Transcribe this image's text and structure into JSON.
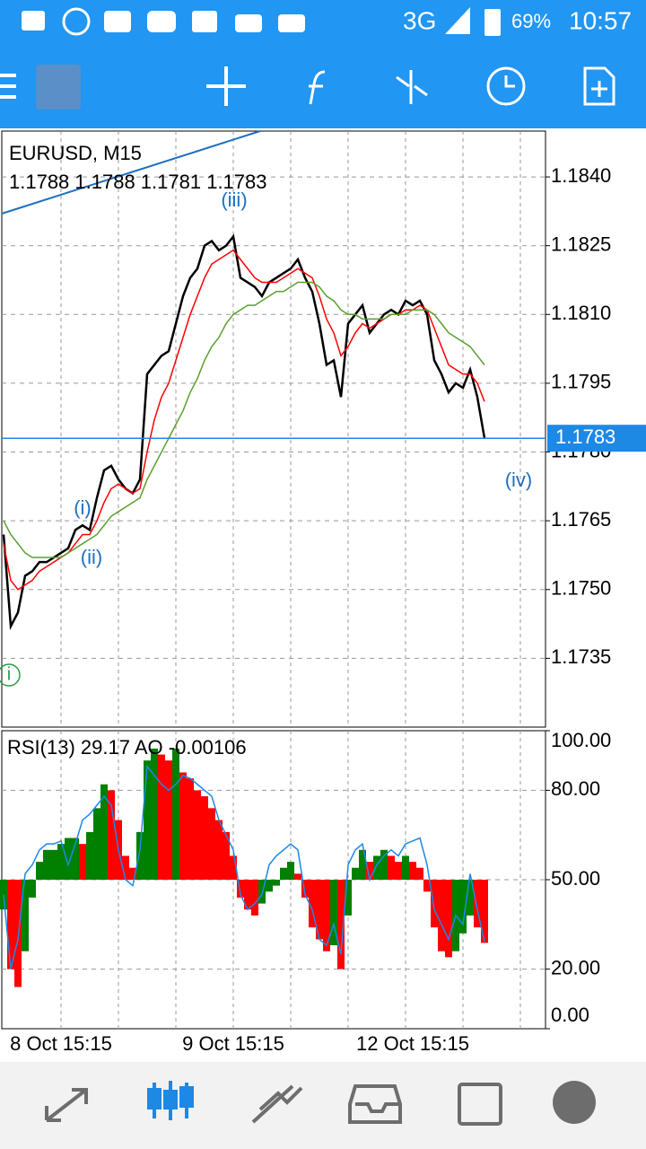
{
  "status_bar": {
    "network": "3G",
    "battery": "69%",
    "time": "10:57"
  },
  "chart_data": [
    {
      "type": "line",
      "title": "EURUSD, M15",
      "subtitle": "1.1788 1.1788 1.1781 1.1783",
      "annotations": [
        "(i)",
        "(ii)",
        "(iii)",
        "(iv)",
        "i"
      ],
      "current_price": 1.1783,
      "current_price_color": "#1e88e5",
      "categories": [
        null,
        null,
        null,
        null,
        null,
        null,
        null,
        null,
        "8 Oct 15:15",
        null,
        null,
        null,
        null,
        null,
        null,
        null,
        null,
        null,
        null,
        null,
        null,
        null,
        null,
        null,
        null,
        null,
        null,
        null,
        null,
        null,
        null,
        null,
        "9 Oct 15:15",
        null,
        null,
        null,
        null,
        null,
        null,
        null,
        null,
        null,
        null,
        null,
        null,
        null,
        null,
        null,
        null,
        null,
        null,
        null,
        null,
        null,
        null,
        null,
        null,
        "12 Oct 15:15",
        null,
        null,
        null,
        null,
        null,
        null,
        null,
        null,
        null,
        null
      ],
      "ylim": [
        1.172,
        1.185
      ],
      "yticks": [
        {
          "value": 1.184,
          "label": "1.1840"
        },
        1.1825,
        {
          "value": 1.181,
          "label": "1.1810"
        },
        1.1795,
        {
          "value": 1.178,
          "label": "1.1780"
        },
        1.1765,
        {
          "value": 1.175,
          "label": "1.1750"
        },
        1.1735
      ],
      "grid": true,
      "series": [
        {
          "color": "#000000",
          "values": [
            1.1762,
            1.1742,
            1.1745,
            1.1753,
            1.1754,
            1.1756,
            1.1756,
            1.1757,
            1.1758,
            1.1759,
            1.1763,
            1.1764,
            1.1763,
            1.177,
            1.1776,
            1.1777,
            1.1774,
            1.1772,
            1.1771,
            1.1774,
            1.1797,
            1.1799,
            1.1801,
            1.1802,
            1.1808,
            1.1814,
            1.1818,
            1.182,
            1.1825,
            1.1826,
            1.1824,
            1.1825,
            1.1827,
            1.1818,
            1.1817,
            1.1816,
            1.1814,
            1.1817,
            1.1818,
            1.1819,
            1.182,
            1.1822,
            1.1818,
            1.1815,
            1.1808,
            1.1799,
            1.18,
            1.1792,
            1.1808,
            1.181,
            1.1812,
            1.1806,
            1.1808,
            1.181,
            1.1811,
            1.181,
            1.1813,
            1.1812,
            1.1813,
            1.181,
            1.18,
            1.1797,
            1.1793,
            1.1795,
            1.1794,
            1.1798,
            1.1792,
            1.1783
          ]
        },
        {
          "color": "#ff0000",
          "values": [
            1.176,
            1.1752,
            1.175,
            1.1751,
            1.1752,
            1.1754,
            1.1755,
            1.1756,
            1.1757,
            1.1758,
            1.176,
            1.1762,
            1.1762,
            1.1765,
            1.1769,
            1.1772,
            1.1773,
            1.1772,
            1.1771,
            1.1772,
            1.178,
            1.1787,
            1.1792,
            1.1795,
            1.18,
            1.1805,
            1.181,
            1.1814,
            1.1818,
            1.1821,
            1.1822,
            1.1823,
            1.1824,
            1.1822,
            1.182,
            1.1818,
            1.1817,
            1.1817,
            1.1817,
            1.1818,
            1.1819,
            1.182,
            1.1819,
            1.1818,
            1.1814,
            1.1809,
            1.1806,
            1.1801,
            1.1803,
            1.1806,
            1.1808,
            1.1807,
            1.1808,
            1.1809,
            1.181,
            1.181,
            1.1811,
            1.1811,
            1.1812,
            1.1811,
            1.1807,
            1.1803,
            1.1799,
            1.1798,
            1.1797,
            1.1797,
            1.1795,
            1.1791
          ]
        },
        {
          "color": "#5aa02c",
          "values": [
            1.1765,
            1.1762,
            1.176,
            1.1758,
            1.1757,
            1.1757,
            1.1757,
            1.1757,
            1.1757,
            1.1758,
            1.1759,
            1.176,
            1.1761,
            1.1762,
            1.1764,
            1.1766,
            1.1767,
            1.1768,
            1.1769,
            1.177,
            1.1774,
            1.1777,
            1.178,
            1.1783,
            1.1786,
            1.1789,
            1.1793,
            1.1796,
            1.18,
            1.1803,
            1.1805,
            1.1808,
            1.181,
            1.1811,
            1.1812,
            1.1812,
            1.1813,
            1.1814,
            1.1815,
            1.1815,
            1.1816,
            1.1817,
            1.1817,
            1.1817,
            1.1816,
            1.1814,
            1.1813,
            1.1811,
            1.181,
            1.181,
            1.1809,
            1.1809,
            1.1809,
            1.1809,
            1.181,
            1.181,
            1.181,
            1.1811,
            1.1811,
            1.1811,
            1.181,
            1.1808,
            1.1806,
            1.1805,
            1.1804,
            1.1803,
            1.1801,
            1.1799
          ]
        }
      ]
    },
    {
      "type": "combo",
      "title": "RSI(13) 29.17 AO -0.00106",
      "ylim": [
        0,
        100
      ],
      "yticks": [
        {
          "value": 100,
          "label": "100.00"
        },
        {
          "value": 80,
          "label": "80.00"
        },
        {
          "value": 50,
          "label": "50.00"
        },
        {
          "value": 20,
          "label": "20.00"
        },
        {
          "value": 0,
          "label": "0.00"
        }
      ],
      "y2lim": [
        -0.0025,
        0.0025
      ],
      "series": [
        {
          "style": "line",
          "color": "#1e88e5",
          "values": [
            45,
            20,
            30,
            52,
            55,
            60,
            62,
            62,
            63,
            55,
            62,
            70,
            72,
            75,
            78,
            75,
            60,
            50,
            48,
            60,
            88,
            85,
            82,
            80,
            82,
            85,
            84,
            82,
            80,
            78,
            70,
            65,
            60,
            45,
            40,
            42,
            45,
            55,
            58,
            60,
            62,
            60,
            45,
            40,
            30,
            28,
            35,
            25,
            55,
            60,
            62,
            50,
            55,
            58,
            60,
            58,
            62,
            63,
            64,
            55,
            40,
            35,
            30,
            38,
            35,
            52,
            40,
            29.17
          ]
        },
        {
          "style": "histogram",
          "axis": "y2",
          "up_color": "#008000",
          "down_color": "#ff0000",
          "values": [
            -0.0005,
            -0.0015,
            -0.0018,
            -0.0012,
            -0.0003,
            0.0003,
            0.0005,
            0.0005,
            0.0006,
            0.0007,
            0.0007,
            0.0006,
            0.0008,
            0.0012,
            0.0016,
            0.0015,
            0.001,
            0.0004,
            0.0002,
            0.0008,
            0.002,
            0.0022,
            0.0021,
            0.002,
            0.0022,
            0.0018,
            0.0017,
            0.0015,
            0.0014,
            0.0012,
            0.001,
            0.0008,
            0.0004,
            -0.0003,
            -0.0005,
            -0.0006,
            -0.0004,
            -0.0002,
            -0.0001,
            0.0002,
            0.0003,
            0.0001,
            -0.0003,
            -0.0008,
            -0.001,
            -0.0012,
            -0.0011,
            -0.0015,
            -0.0006,
            0.0002,
            0.0005,
            0.0003,
            0.0004,
            0.0005,
            0.0004,
            0.0003,
            0.0004,
            0.0003,
            0.0002,
            -0.0002,
            -0.0008,
            -0.0012,
            -0.0013,
            -0.0012,
            -0.0009,
            -0.0006,
            -0.0008,
            -0.00106
          ]
        }
      ]
    }
  ]
}
